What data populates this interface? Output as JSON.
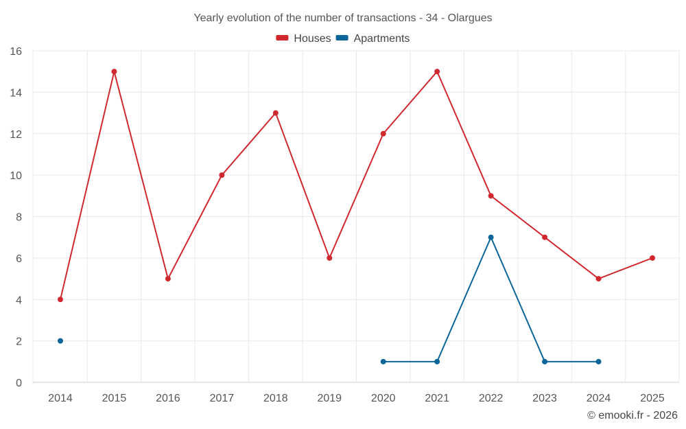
{
  "chart_data": {
    "type": "line",
    "title": "Yearly evolution of the number of transactions - 34 - Olargues",
    "categories": [
      "2014",
      "2015",
      "2016",
      "2017",
      "2018",
      "2019",
      "2020",
      "2021",
      "2022",
      "2023",
      "2024",
      "2025"
    ],
    "ylim": [
      0,
      16
    ],
    "yticks": [
      0,
      2,
      4,
      6,
      8,
      10,
      12,
      14,
      16
    ],
    "xlabel": "",
    "ylabel": "",
    "grid": true,
    "legend_position": "top-center",
    "series": [
      {
        "name": "Houses",
        "color": "#d0282e",
        "values": [
          4,
          15,
          5,
          10,
          13,
          6,
          12,
          15,
          9,
          7,
          5,
          6
        ]
      },
      {
        "name": "Apartments",
        "color": "#0a6598",
        "values": [
          2,
          null,
          null,
          null,
          null,
          null,
          1,
          1,
          7,
          1,
          1,
          null
        ]
      }
    ]
  },
  "credit": "© emooki.fr - 2026"
}
